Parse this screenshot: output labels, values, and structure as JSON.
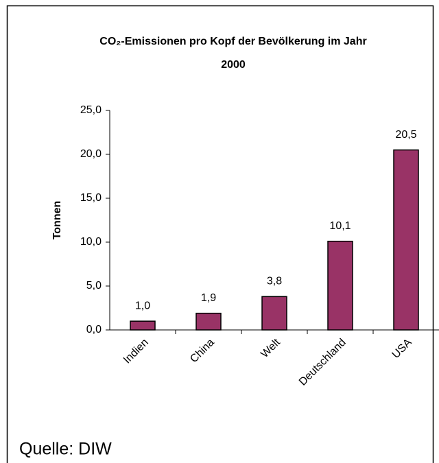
{
  "chart_data": {
    "type": "bar",
    "title": "CO₂-Emissionen pro Kopf der Bevölkerung im Jahr 2000",
    "y_label": "Tonnen",
    "categories": [
      "Indien",
      "China",
      "Welt",
      "Deutschland",
      "USA"
    ],
    "values": [
      1.0,
      1.9,
      3.8,
      10.1,
      20.5
    ],
    "value_labels": [
      "1,0",
      "1,9",
      "3,8",
      "10,1",
      "20,5"
    ],
    "color": "#993366",
    "ylim": [
      0,
      25
    ],
    "yticks": [
      {
        "value": 0,
        "label": "0,0"
      },
      {
        "value": 5,
        "label": "5,0"
      },
      {
        "value": 10,
        "label": "10,0"
      },
      {
        "value": 15,
        "label": "15,0"
      },
      {
        "value": 20,
        "label": "20,0"
      },
      {
        "value": 25,
        "label": "25,0"
      }
    ],
    "grid": false,
    "source": "Quelle: DIW"
  }
}
